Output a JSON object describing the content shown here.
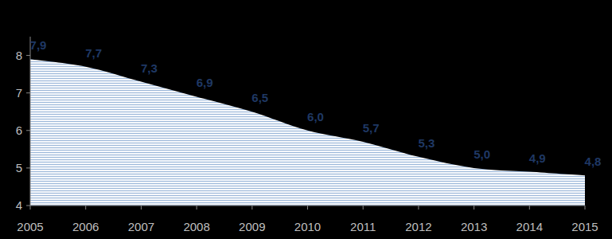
{
  "chart_data": {
    "type": "area",
    "x": [
      2005,
      2006,
      2007,
      2008,
      2009,
      2010,
      2011,
      2012,
      2013,
      2014,
      2015
    ],
    "values": [
      7.9,
      7.7,
      7.3,
      6.9,
      6.5,
      6.0,
      5.7,
      5.3,
      5.0,
      4.9,
      4.8
    ],
    "value_labels": [
      "7,9",
      "7,7",
      "7,3",
      "6,9",
      "6,5",
      "6,0",
      "5,7",
      "5,3",
      "5,0",
      "4,9",
      "4,8"
    ],
    "color": "#9bb7d9",
    "xlim": [
      2005,
      2015
    ],
    "xticks": [
      2005,
      2006,
      2007,
      2008,
      2009,
      2010,
      2011,
      2012,
      2013,
      2014,
      2015
    ],
    "ylim": [
      4,
      8.5
    ],
    "yticks": [
      4,
      5,
      6,
      7,
      8
    ],
    "grid": false,
    "data_labels": true
  }
}
